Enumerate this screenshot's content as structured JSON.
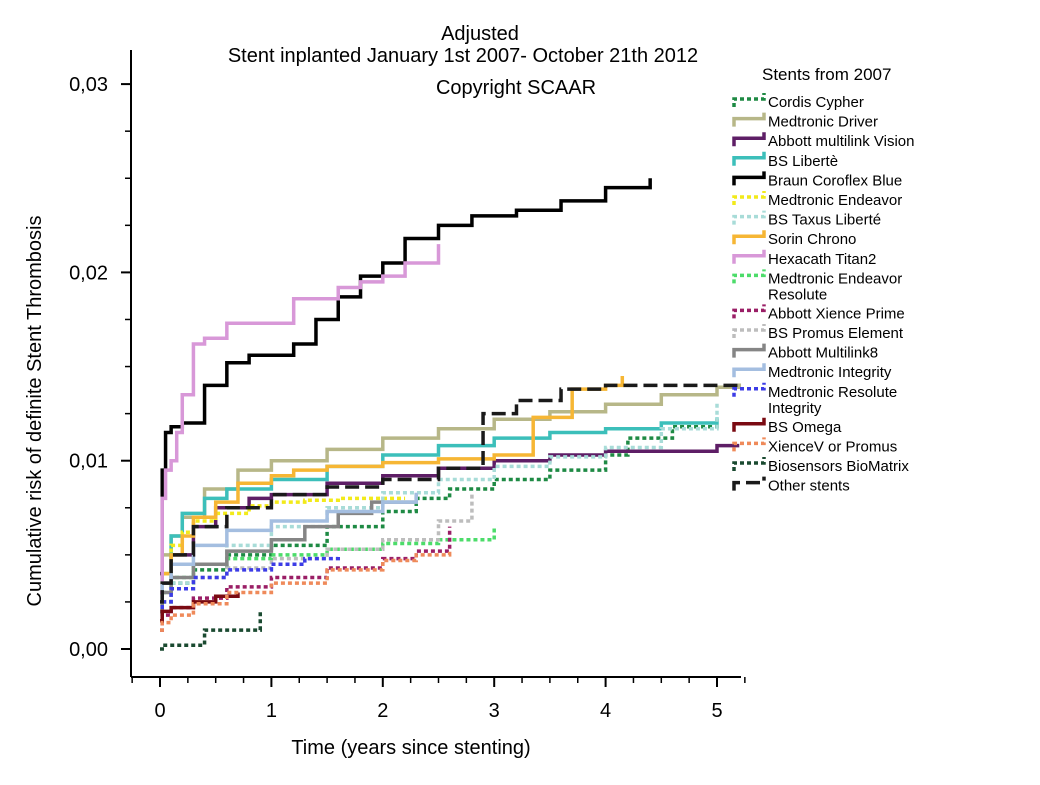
{
  "chart_data": {
    "type": "line",
    "title": "Adjusted",
    "subtitle": "Stent inplanted January 1st 2007- October 21th 2012",
    "copyright": "Copyright SCAAR",
    "xlabel": "Time (years since stenting)",
    "ylabel": "Cumulative risk of definite Stent Thrombosis",
    "xlim": [
      -0.25,
      5.25
    ],
    "ylim": [
      -0.0015,
      0.0305
    ],
    "x_ticks": [
      0,
      1,
      2,
      3,
      4,
      5
    ],
    "x_tick_labels": [
      "0",
      "1",
      "2",
      "3",
      "4",
      "5"
    ],
    "y_ticks": [
      0.0,
      0.01,
      0.02,
      0.03
    ],
    "y_tick_labels": [
      "0,00",
      "0,01",
      "0,02",
      "0,03"
    ],
    "legend_title": "Stents from 2007",
    "legend_position": "right",
    "grid": false,
    "series": [
      {
        "name": "Cordis Cypher",
        "color": "#1e8a44",
        "dash": "dot",
        "x": [
          0,
          0.02,
          0.1,
          0.3,
          0.6,
          1.0,
          1.5,
          2.0,
          2.3,
          2.6,
          3.0,
          3.5,
          4.0,
          4.2,
          4.6,
          5.0
        ],
        "y": [
          0.0015,
          0.0025,
          0.0035,
          0.0042,
          0.005,
          0.0055,
          0.0065,
          0.0073,
          0.008,
          0.0085,
          0.009,
          0.0095,
          0.0103,
          0.0112,
          0.0118,
          0.0122
        ]
      },
      {
        "name": "Medtronic Driver",
        "color": "#b7b788",
        "dash": "solid",
        "x": [
          0,
          0.02,
          0.1,
          0.2,
          0.4,
          0.7,
          1.0,
          1.5,
          2.0,
          2.5,
          3.0,
          3.5,
          4.0,
          4.5,
          5.0,
          5.2
        ],
        "y": [
          0.003,
          0.005,
          0.006,
          0.007,
          0.0085,
          0.0095,
          0.01,
          0.0106,
          0.0112,
          0.0117,
          0.0122,
          0.0126,
          0.013,
          0.0135,
          0.0139,
          0.0141
        ]
      },
      {
        "name": "Abbott multilink Vision",
        "color": "#5e1e66",
        "dash": "solid",
        "x": [
          0,
          0.02,
          0.1,
          0.3,
          0.5,
          0.8,
          1.0,
          1.5,
          2.0,
          2.5,
          3.0,
          3.5,
          4.0,
          4.5,
          5.0,
          5.2
        ],
        "y": [
          0.002,
          0.0035,
          0.005,
          0.0065,
          0.0075,
          0.008,
          0.0082,
          0.0088,
          0.0092,
          0.0096,
          0.01,
          0.0103,
          0.0105,
          0.0105,
          0.0108,
          0.0108
        ]
      },
      {
        "name": "BS Libertè",
        "color": "#3cbfba",
        "dash": "solid",
        "x": [
          0,
          0.02,
          0.1,
          0.2,
          0.4,
          0.6,
          1.0,
          1.5,
          2.0,
          2.5,
          3.0,
          3.5,
          4.0,
          4.5,
          5.0
        ],
        "y": [
          0.002,
          0.004,
          0.006,
          0.0072,
          0.008,
          0.0085,
          0.009,
          0.0097,
          0.0103,
          0.0108,
          0.0112,
          0.0115,
          0.0117,
          0.012,
          0.0123
        ]
      },
      {
        "name": "Braun Coroflex Blue",
        "color": "#000000",
        "dash": "solid",
        "x": [
          0,
          0.02,
          0.05,
          0.1,
          0.2,
          0.4,
          0.6,
          0.8,
          1.0,
          1.2,
          1.4,
          1.6,
          1.8,
          2.0,
          2.2,
          2.5,
          2.8,
          3.2,
          3.6,
          4.0,
          4.4
        ],
        "y": [
          0.004,
          0.0095,
          0.0115,
          0.0118,
          0.012,
          0.014,
          0.0152,
          0.0156,
          0.0156,
          0.0162,
          0.0175,
          0.0187,
          0.0198,
          0.0205,
          0.0218,
          0.0225,
          0.023,
          0.0233,
          0.0238,
          0.0245,
          0.025
        ]
      },
      {
        "name": "Medtronic Endeavor",
        "color": "#f2ea1a",
        "dash": "dot",
        "x": [
          0,
          0.02,
          0.1,
          0.2,
          0.3,
          0.5,
          0.8,
          1.0,
          1.3,
          1.6,
          2.0,
          2.2
        ],
        "y": [
          0.002,
          0.004,
          0.0055,
          0.0062,
          0.0068,
          0.0072,
          0.0076,
          0.0078,
          0.0079,
          0.008,
          0.008,
          0.008
        ]
      },
      {
        "name": "BS Taxus Liberté",
        "color": "#a8dcd8",
        "dash": "dot",
        "x": [
          0,
          0.02,
          0.1,
          0.3,
          0.6,
          1.0,
          1.5,
          2.0,
          2.5,
          3.0,
          3.5,
          4.0,
          4.5,
          5.0
        ],
        "y": [
          0.0015,
          0.0025,
          0.0035,
          0.0045,
          0.0055,
          0.0065,
          0.0075,
          0.0083,
          0.009,
          0.0097,
          0.0102,
          0.0107,
          0.0117,
          0.0131
        ]
      },
      {
        "name": "Sorin Chrono",
        "color": "#f6b634",
        "dash": "solid",
        "x": [
          0,
          0.02,
          0.1,
          0.2,
          0.3,
          0.5,
          0.7,
          1.0,
          1.2,
          1.5,
          2.0,
          2.5,
          3.0,
          3.35,
          3.7,
          4.0,
          4.15
        ],
        "y": [
          0.003,
          0.004,
          0.005,
          0.006,
          0.007,
          0.0078,
          0.0088,
          0.0092,
          0.0095,
          0.0097,
          0.0099,
          0.0101,
          0.0103,
          0.0123,
          0.0138,
          0.014,
          0.0145
        ]
      },
      {
        "name": "Hexacath Titan2",
        "color": "#d898d8",
        "dash": "solid",
        "x": [
          0,
          0.02,
          0.05,
          0.1,
          0.15,
          0.2,
          0.3,
          0.4,
          0.6,
          0.8,
          1.0,
          1.2,
          1.4,
          1.6,
          1.8,
          2.0,
          2.2,
          2.5
        ],
        "y": [
          0.003,
          0.008,
          0.0095,
          0.01,
          0.0115,
          0.0135,
          0.0162,
          0.0165,
          0.0173,
          0.0173,
          0.0173,
          0.0186,
          0.0186,
          0.0192,
          0.0195,
          0.0198,
          0.0205,
          0.0215
        ]
      },
      {
        "name": "Medtronic Endeavor Resolute",
        "color": "#4cdc6a",
        "dash": "dot",
        "x": [
          0,
          0.02,
          0.1,
          0.3,
          0.6,
          1.0,
          1.5,
          2.0,
          2.5,
          3.0
        ],
        "y": [
          0.002,
          0.003,
          0.0038,
          0.0045,
          0.0048,
          0.005,
          0.0053,
          0.0056,
          0.0058,
          0.0065
        ]
      },
      {
        "name": "Abbott Xience Prime",
        "color": "#9a1e66",
        "dash": "dot",
        "x": [
          0,
          0.02,
          0.1,
          0.3,
          0.6,
          1.0,
          1.5,
          2.0,
          2.3,
          2.6
        ],
        "y": [
          0.001,
          0.0018,
          0.0022,
          0.0027,
          0.0033,
          0.0038,
          0.0043,
          0.0048,
          0.0052,
          0.0065
        ]
      },
      {
        "name": "BS Promus Element",
        "color": "#bdbdbd",
        "dash": "dot",
        "x": [
          0,
          0.02,
          0.1,
          0.3,
          0.6,
          1.0,
          1.5,
          2.0,
          2.5,
          2.8
        ],
        "y": [
          0.0015,
          0.0025,
          0.0032,
          0.0038,
          0.0043,
          0.0048,
          0.0053,
          0.0058,
          0.0068,
          0.0083
        ]
      },
      {
        "name": "Abbott Multilink8",
        "color": "#858585",
        "dash": "solid",
        "x": [
          0,
          0.02,
          0.1,
          0.3,
          0.6,
          1.0,
          1.3,
          1.6,
          1.9,
          2.3
        ],
        "y": [
          0.002,
          0.003,
          0.0038,
          0.0045,
          0.0052,
          0.0058,
          0.0065,
          0.0072,
          0.0078,
          0.0082
        ]
      },
      {
        "name": "Medtronic Integrity",
        "color": "#a4bee0",
        "dash": "solid",
        "x": [
          0,
          0.02,
          0.1,
          0.3,
          0.6,
          1.0,
          1.5,
          2.0,
          2.3
        ],
        "y": [
          0.0025,
          0.0035,
          0.0045,
          0.0055,
          0.0063,
          0.0068,
          0.0073,
          0.0078,
          0.0083
        ]
      },
      {
        "name": "Medtronic Resolute Integrity",
        "color": "#3c3ce6",
        "dash": "dot",
        "x": [
          0,
          0.02,
          0.1,
          0.3,
          0.6,
          1.0,
          1.3,
          1.6
        ],
        "y": [
          0.0015,
          0.0025,
          0.0032,
          0.0038,
          0.0042,
          0.0045,
          0.0048,
          0.005
        ]
      },
      {
        "name": "BS Omega",
        "color": "#7a0a12",
        "dash": "solid",
        "x": [
          0,
          0.02,
          0.1,
          0.3,
          0.5,
          0.7
        ],
        "y": [
          0.0015,
          0.002,
          0.0022,
          0.0025,
          0.0028,
          0.003
        ]
      },
      {
        "name": "XienceV or Promus",
        "color": "#ef8a5a",
        "dash": "dot",
        "x": [
          0,
          0.02,
          0.1,
          0.3,
          0.6,
          1.0,
          1.5,
          2.0,
          2.3,
          2.6
        ],
        "y": [
          0.001,
          0.0014,
          0.0018,
          0.0024,
          0.003,
          0.0035,
          0.0042,
          0.0047,
          0.005,
          0.0052
        ]
      },
      {
        "name": "Biosensors BioMatrix",
        "color": "#1a4a30",
        "dash": "dot",
        "x": [
          0,
          0.02,
          0.35,
          0.4,
          0.85,
          0.9
        ],
        "y": [
          0.0,
          0.0002,
          0.0002,
          0.001,
          0.001,
          0.002
        ]
      },
      {
        "name": "Other stents",
        "color": "#1a1a1a",
        "dash": "dash",
        "x": [
          0,
          0.02,
          0.1,
          0.3,
          0.6,
          1.0,
          1.5,
          2.0,
          2.5,
          2.9,
          3.2,
          3.6,
          4.0,
          4.5,
          5.0,
          5.2
        ],
        "y": [
          0.0025,
          0.0035,
          0.005,
          0.0065,
          0.0075,
          0.0082,
          0.0086,
          0.009,
          0.0096,
          0.0125,
          0.0132,
          0.0138,
          0.014,
          0.014,
          0.014,
          0.0142
        ]
      }
    ]
  }
}
